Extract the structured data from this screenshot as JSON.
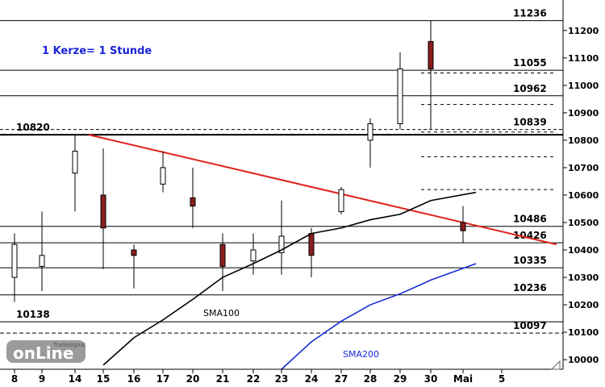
{
  "chart_data": {
    "type": "candlestick",
    "note": "1 Kerze= 1 Stunde",
    "x_tick_labels": [
      "8",
      "9",
      "14",
      "15",
      "16",
      "17",
      "20",
      "21",
      "22",
      "23",
      "24",
      "27",
      "28",
      "29",
      "30",
      "Mai",
      "5"
    ],
    "y_ticks": [
      10000,
      10100,
      10200,
      10300,
      10400,
      10500,
      10600,
      10700,
      10800,
      10900,
      11000,
      11100,
      11200
    ],
    "ylim": [
      9965,
      11270
    ],
    "horizontal_levels": [
      {
        "value": 11236,
        "label": "11236"
      },
      {
        "value": 11055,
        "label": "11055"
      },
      {
        "value": 10962,
        "label": "10962"
      },
      {
        "value": 10839,
        "label": "10839"
      },
      {
        "value": 10820,
        "label": "10820"
      },
      {
        "value": 10486,
        "label": "10486"
      },
      {
        "value": 10426,
        "label": "10426"
      },
      {
        "value": 10335,
        "label": "10335"
      },
      {
        "value": 10236,
        "label": "10236"
      },
      {
        "value": 10138,
        "label": "10138"
      },
      {
        "value": 10097,
        "label": "10097"
      }
    ],
    "projection_levels": [
      11045,
      10930,
      10830,
      10740,
      10620
    ],
    "trendline": {
      "from": [
        15,
        10820
      ],
      "to": [
        4.3,
        10420
      ],
      "color": "#e0201a"
    },
    "series": [
      {
        "name": "SMA100",
        "color": "#000000",
        "points": [
          [
            15,
            9980
          ],
          [
            16,
            10080
          ],
          [
            17,
            10145
          ],
          [
            20,
            10220
          ],
          [
            21,
            10300
          ],
          [
            22,
            10350
          ],
          [
            23,
            10400
          ],
          [
            24,
            10460
          ],
          [
            27,
            10480
          ],
          [
            28,
            10510
          ],
          [
            29,
            10530
          ],
          [
            30,
            10580
          ],
          [
            1,
            10610
          ]
        ]
      },
      {
        "name": "SMA200",
        "color": "#1a2bd8",
        "points": [
          [
            23,
            9965
          ],
          [
            24,
            10065
          ],
          [
            27,
            10140
          ],
          [
            28,
            10200
          ],
          [
            29,
            10240
          ],
          [
            30,
            10290
          ],
          [
            1,
            10350
          ]
        ]
      }
    ],
    "candles": [
      {
        "x": "8",
        "open": 10300,
        "close": 10420,
        "high": 10460,
        "low": 10210
      },
      {
        "x": "9",
        "open": 10340,
        "close": 10380,
        "high": 10540,
        "low": 10250
      },
      {
        "x": "14",
        "open": 10680,
        "close": 10760,
        "high": 10820,
        "low": 10540
      },
      {
        "x": "15",
        "open": 10600,
        "close": 10480,
        "high": 10770,
        "low": 10330
      },
      {
        "x": "16",
        "open": 10400,
        "close": 10380,
        "high": 10420,
        "low": 10260
      },
      {
        "x": "17",
        "open": 10640,
        "close": 10700,
        "high": 10760,
        "low": 10610
      },
      {
        "x": "20",
        "open": 10590,
        "close": 10560,
        "high": 10700,
        "low": 10480
      },
      {
        "x": "21",
        "open": 10420,
        "close": 10340,
        "high": 10460,
        "low": 10250
      },
      {
        "x": "22",
        "open": 10360,
        "close": 10400,
        "high": 10460,
        "low": 10310
      },
      {
        "x": "23",
        "open": 10390,
        "close": 10450,
        "high": 10580,
        "low": 10310
      },
      {
        "x": "24",
        "open": 10460,
        "close": 10380,
        "high": 10480,
        "low": 10300
      },
      {
        "x": "27",
        "open": 10540,
        "close": 10620,
        "high": 10630,
        "low": 10530
      },
      {
        "x": "28",
        "open": 10800,
        "close": 10860,
        "high": 10880,
        "low": 10700
      },
      {
        "x": "29",
        "open": 10860,
        "close": 11060,
        "high": 11120,
        "low": 10840
      },
      {
        "x": "30",
        "open": 11160,
        "close": 11060,
        "high": 11236,
        "low": 10840
      },
      {
        "x": "Mai",
        "open": 10500,
        "close": 10470,
        "high": 10560,
        "low": 10426
      }
    ],
    "indicator_labels": {
      "sma100": "SMA100",
      "sma200": "SMA200"
    },
    "logo_text": {
      "brand": "Tradesignal",
      "product": "onLine"
    }
  }
}
